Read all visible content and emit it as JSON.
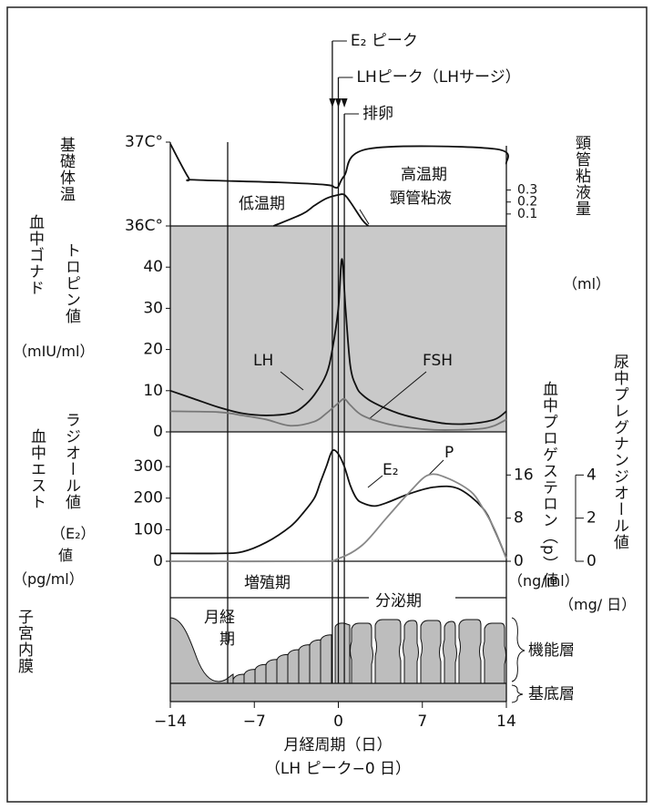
{
  "events": [
    {
      "label": "E₂ ピーク",
      "x": -0.5
    },
    {
      "label": "LHピーク（LHサージ）",
      "x": 0
    },
    {
      "label": "排卵",
      "x": 0.5
    }
  ],
  "time_axis": {
    "xlim": [
      -14,
      14
    ],
    "xticks": [
      {
        "value": -14,
        "label": "−14"
      },
      {
        "value": -7,
        "label": "−7"
      },
      0,
      7,
      14
    ],
    "xlabel": "月経周期（日）",
    "xsublabel": "（LH ピーク−0 日）"
  },
  "chart_data": [
    {
      "type": "line",
      "ylabel": [
        "基礎体温"
      ],
      "y2label": [
        "頸管粘液量",
        "（ml）"
      ],
      "annotations": [
        "低温期",
        "高温期"
      ],
      "ylim": [
        36,
        37
      ],
      "yticks": [
        {
          "value": 37,
          "label": "37C°"
        },
        {
          "value": 36,
          "label": "36C°"
        }
      ],
      "y2lim": [
        0,
        0.7
      ],
      "y2ticks": [
        0.1,
        0.2,
        0.3
      ],
      "series": [
        {
          "color": "#111111",
          "x": [
            -14,
            -12.5,
            -12,
            -5,
            -1,
            -0.3,
            0,
            0.5,
            2.5,
            13,
            14
          ],
          "values": [
            36.98,
            36.58,
            36.55,
            36.52,
            36.49,
            36.46,
            36.47,
            36.6,
            36.92,
            36.92,
            36.74
          ]
        },
        {
          "name": "頸管粘液",
          "axis": "y2",
          "color": "#111111",
          "x": [
            -5.4,
            -3,
            -2,
            -1,
            0,
            0.5,
            1,
            2,
            2.5
          ],
          "values": [
            0,
            0.1,
            0.17,
            0.23,
            0.26,
            0.26,
            0.2,
            0.05,
            0
          ]
        }
      ]
    },
    {
      "type": "line",
      "ylabel": [
        "血中ゴナド",
        "トロピン値",
        "（mIU/ml）"
      ],
      "background": "#c9c9c9",
      "ylim": [
        0,
        50
      ],
      "yticks": [
        0,
        10,
        20,
        30,
        40
      ],
      "series": [
        {
          "name": "LH",
          "color": "#111111",
          "x": [
            -14,
            -12,
            -10,
            -8,
            -6,
            -4,
            -3,
            -2,
            -1,
            -0.5,
            0,
            0.3,
            0.6,
            1,
            1.5,
            2,
            3,
            5,
            7,
            9,
            11,
            13,
            14
          ],
          "values": [
            10,
            8,
            6,
            4.5,
            4,
            4.5,
            6,
            9,
            14,
            20,
            30,
            42,
            30,
            16,
            11,
            9,
            7,
            4.5,
            3,
            2,
            2,
            3,
            5
          ]
        },
        {
          "name": "FSH",
          "color": "#777777",
          "x": [
            -14,
            -10,
            -8,
            -6,
            -4,
            -2,
            -1,
            0,
            0.5,
            1,
            2,
            4,
            6,
            8,
            10,
            12,
            13,
            14
          ],
          "values": [
            5,
            4.8,
            4,
            3,
            1.5,
            2.5,
            4.5,
            7,
            8,
            6.5,
            4,
            2,
            1,
            0.5,
            0.5,
            0.8,
            1.5,
            3
          ]
        }
      ]
    },
    {
      "type": "line",
      "ylabel": [
        "血中エスト",
        "ラジオール値",
        "（E₂）",
        "値",
        "（pg/ml）"
      ],
      "y2label": [
        "血中プロゲステロン（p）値",
        "（ng/ml）"
      ],
      "y3label": [
        "尿中プレグナンジオール値",
        "（mg/ 日）"
      ],
      "ylim": [
        0,
        410
      ],
      "yticks": [
        0,
        100,
        200,
        300
      ],
      "y2lim": [
        0,
        24
      ],
      "y2ticks": [
        0,
        8,
        16
      ],
      "y3lim": [
        0,
        6
      ],
      "y3ticks": [
        0,
        2,
        4
      ],
      "series": [
        {
          "name": "E₂",
          "color": "#111111",
          "x": [
            -14,
            -10,
            -8,
            -6,
            -4,
            -3,
            -2,
            -1.5,
            -1,
            -0.5,
            0,
            0.5,
            1,
            1.5,
            2,
            3,
            4,
            6,
            8,
            10,
            12,
            13,
            14
          ],
          "values": [
            25,
            25,
            30,
            60,
            110,
            150,
            200,
            250,
            300,
            350,
            340,
            300,
            240,
            200,
            185,
            175,
            185,
            215,
            235,
            230,
            170,
            100,
            10
          ]
        },
        {
          "name": "P",
          "axis": "y2",
          "color": "#888888",
          "x": [
            -14,
            -2,
            0,
            2,
            4,
            6,
            7.5,
            9,
            11,
            12,
            13,
            14
          ],
          "values": [
            0,
            0,
            0.5,
            3,
            8,
            13,
            16,
            15.5,
            13,
            10,
            6,
            0.5
          ]
        }
      ]
    }
  ],
  "endometrium": {
    "label": "子宮内膜",
    "phases": [
      "増殖期",
      "分泌期"
    ],
    "menstruation": "月経期",
    "layers": [
      "機能層",
      "基底層"
    ]
  }
}
